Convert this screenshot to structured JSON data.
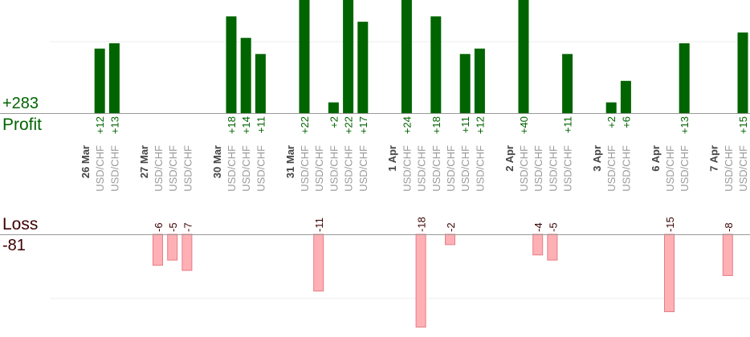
{
  "profit_panel": {
    "total": "+283",
    "label": "Profit"
  },
  "loss_panel": {
    "label": "Loss",
    "total": "-81"
  },
  "colors": {
    "profit_bar": "#006400",
    "profit_text": "#006400",
    "loss_bar": "#ffb0b5",
    "loss_bar_border": "#e47c85",
    "loss_text": "#3c0000",
    "category_text": "#9a9a9a",
    "date_text": "#444444",
    "axis": "#999999",
    "grid": "#eeeeee"
  },
  "chart_data": {
    "type": "bar",
    "title": "",
    "grid": true,
    "categories": [
      {
        "label": "26 Mar",
        "kind": "date"
      },
      {
        "label": "USD/CHF",
        "kind": "trade",
        "value": 12
      },
      {
        "label": "USD/CHF",
        "kind": "trade",
        "value": 13
      },
      {
        "label": "",
        "kind": "gap"
      },
      {
        "label": "27 Mar",
        "kind": "date"
      },
      {
        "label": "USD/CHF",
        "kind": "trade",
        "value": -6
      },
      {
        "label": "USD/CHF",
        "kind": "trade",
        "value": -5
      },
      {
        "label": "USD/CHF",
        "kind": "trade",
        "value": -7
      },
      {
        "label": "",
        "kind": "gap"
      },
      {
        "label": "30 Mar",
        "kind": "date"
      },
      {
        "label": "USD/CHF",
        "kind": "trade",
        "value": 18
      },
      {
        "label": "USD/CHF",
        "kind": "trade",
        "value": 14
      },
      {
        "label": "USD/CHF",
        "kind": "trade",
        "value": 11
      },
      {
        "label": "",
        "kind": "gap"
      },
      {
        "label": "31 Mar",
        "kind": "date"
      },
      {
        "label": "USD/CHF",
        "kind": "trade",
        "value": 22
      },
      {
        "label": "USD/CHF",
        "kind": "trade",
        "value": -11
      },
      {
        "label": "USD/CHF",
        "kind": "trade",
        "value": 2
      },
      {
        "label": "USD/CHF",
        "kind": "trade",
        "value": 22
      },
      {
        "label": "USD/CHF",
        "kind": "trade",
        "value": 17
      },
      {
        "label": "",
        "kind": "gap"
      },
      {
        "label": "1 Apr",
        "kind": "date"
      },
      {
        "label": "USD/CHF",
        "kind": "trade",
        "value": 24
      },
      {
        "label": "USD/CHF",
        "kind": "trade",
        "value": -18
      },
      {
        "label": "USD/CHF",
        "kind": "trade",
        "value": 18
      },
      {
        "label": "USD/CHF",
        "kind": "trade",
        "value": -2
      },
      {
        "label": "USD/CHF",
        "kind": "trade",
        "value": 11
      },
      {
        "label": "USD/CHF",
        "kind": "trade",
        "value": 12
      },
      {
        "label": "",
        "kind": "gap"
      },
      {
        "label": "2 Apr",
        "kind": "date"
      },
      {
        "label": "USD/CHF",
        "kind": "trade",
        "value": 40
      },
      {
        "label": "USD/CHF",
        "kind": "trade",
        "value": -4
      },
      {
        "label": "USD/CHF",
        "kind": "trade",
        "value": -5
      },
      {
        "label": "USD/CHF",
        "kind": "trade",
        "value": 11
      },
      {
        "label": "",
        "kind": "gap"
      },
      {
        "label": "3 Apr",
        "kind": "date"
      },
      {
        "label": "USD/CHF",
        "kind": "trade",
        "value": 2
      },
      {
        "label": "USD/CHF",
        "kind": "trade",
        "value": 6
      },
      {
        "label": "",
        "kind": "gap"
      },
      {
        "label": "6 Apr",
        "kind": "date"
      },
      {
        "label": "USD/CHF",
        "kind": "trade",
        "value": -15
      },
      {
        "label": "USD/CHF",
        "kind": "trade",
        "value": 13
      },
      {
        "label": "",
        "kind": "gap"
      },
      {
        "label": "7 Apr",
        "kind": "date"
      },
      {
        "label": "USD/CHF",
        "kind": "trade",
        "value": -8
      },
      {
        "label": "USD/CHF",
        "kind": "trade",
        "value": 15
      }
    ]
  }
}
